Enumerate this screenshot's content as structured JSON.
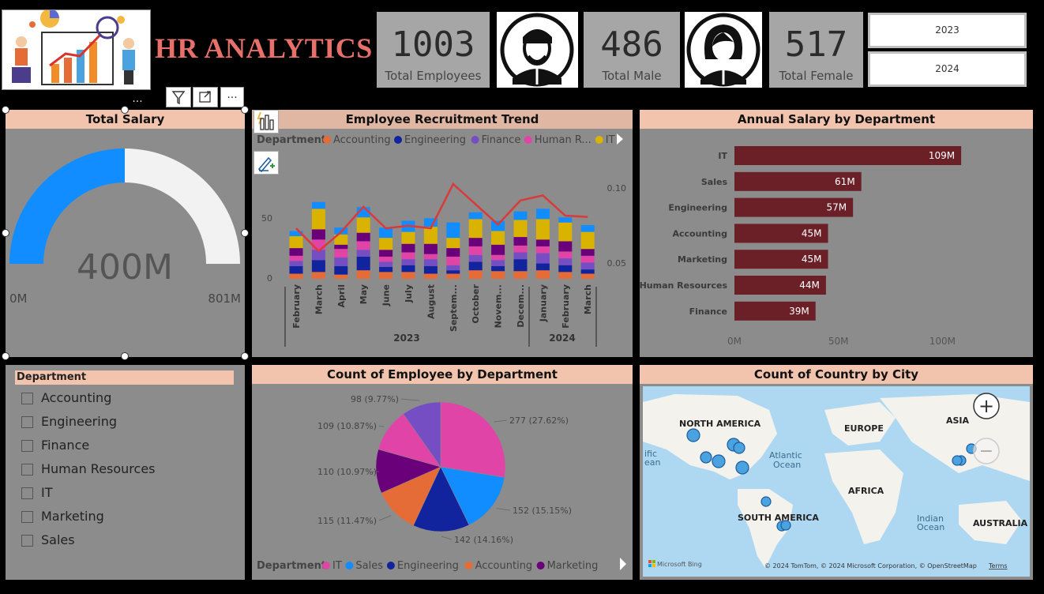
{
  "title": "HR ANALYTICS",
  "kpis": {
    "total_employees": {
      "value": "1003",
      "label": "Total Employees"
    },
    "total_male": {
      "value": "486",
      "label": "Total Male"
    },
    "total_female": {
      "value": "517",
      "label": "Total Female"
    }
  },
  "year_filter": {
    "options": [
      "2023",
      "2024"
    ]
  },
  "toolbar": {
    "more": "...",
    "filter_icon": "filter-icon",
    "focus_icon": "focus-mode-icon",
    "more_icon": "more-options-icon"
  },
  "gauge": {
    "title": "Total Salary",
    "value_label": "400M",
    "min_label": "0M",
    "max_label": "801M",
    "fill_fraction": 0.5,
    "colors": {
      "fill": "#118dff",
      "track": "#f2f2f2"
    }
  },
  "recruitment": {
    "title": "Employee Recruitment Trend",
    "legend_title": "Department",
    "legend_items": [
      {
        "name": "Accounting",
        "color": "#e66c37"
      },
      {
        "name": "Engineering",
        "color": "#12239e"
      },
      {
        "name": "Finance",
        "color": "#744ec2"
      },
      {
        "name": "Human R...",
        "color": "#e044a7"
      },
      {
        "name": "IT",
        "color": "#d9b300"
      }
    ],
    "y_ticks_left": [
      "0",
      "50"
    ],
    "y_ticks_right": [
      "0.05",
      "0.10"
    ],
    "year_labels": [
      "2023",
      "2024"
    ]
  },
  "annual_salary": {
    "title": "Annual Salary by Department"
  },
  "slicer": {
    "title": "Department",
    "items": [
      "Accounting",
      "Engineering",
      "Finance",
      "Human Resources",
      "IT",
      "Marketing",
      "Sales"
    ]
  },
  "pie": {
    "title": "Count of Employee by Department",
    "legend_title": "Department",
    "legend_items": [
      {
        "name": "IT",
        "color": "#e044a7"
      },
      {
        "name": "Sales",
        "color": "#118dff"
      },
      {
        "name": "Engineering",
        "color": "#12239e"
      },
      {
        "name": "Accounting",
        "color": "#e66c37"
      },
      {
        "name": "Marketing",
        "color": "#6b007b"
      }
    ]
  },
  "map": {
    "title": "Count of Country by City",
    "labels": {
      "north_america": "NORTH AMERICA",
      "europe": "EUROPE",
      "asia": "ASIA",
      "atlantic": "Atlantic",
      "ocean": "Ocean",
      "pacific_1": "ific",
      "pacific_2": "ean",
      "africa": "AFRICA",
      "south_america": "SOUTH AMERICA",
      "indian": "Indian",
      "indian_ocean": "Ocean",
      "australia": "AUSTRALIA"
    },
    "bing": "Microsoft Bing",
    "copyright": "© 2024 TomTom, © 2024 Microsoft Corporation, © OpenStreetMap",
    "terms": "Terms",
    "zoom_in": "+",
    "zoom_out": "−"
  },
  "chart_data": [
    {
      "type": "bar",
      "title": "Employee Recruitment Trend",
      "categories": [
        "February",
        "March",
        "April",
        "May",
        "June",
        "July",
        "August",
        "Septem...",
        "October",
        "Novem...",
        "Decem...",
        "January",
        "February",
        "March"
      ],
      "groups": [
        {
          "name": "2023",
          "count": 11
        },
        {
          "name": "2024",
          "count": 3
        }
      ],
      "stacked": true,
      "series": [
        {
          "name": "Accounting",
          "color": "#e66c37",
          "values": [
            6,
            8,
            5,
            10,
            8,
            8,
            6,
            6,
            10,
            9,
            9,
            10,
            8,
            6
          ]
        },
        {
          "name": "Engineering",
          "color": "#12239e",
          "values": [
            9,
            14,
            10,
            16,
            6,
            8,
            9,
            4,
            10,
            6,
            14,
            8,
            8,
            5
          ]
        },
        {
          "name": "Finance",
          "color": "#744ec2",
          "values": [
            6,
            12,
            10,
            8,
            6,
            7,
            8,
            6,
            8,
            7,
            8,
            12,
            8,
            8
          ]
        },
        {
          "name": "Human Resources",
          "color": "#e044a7",
          "values": [
            6,
            12,
            10,
            10,
            6,
            8,
            6,
            10,
            10,
            6,
            8,
            8,
            8,
            8
          ]
        },
        {
          "name": "IT",
          "color": "#d9b300",
          "values": [
            14,
            24,
            12,
            18,
            14,
            14,
            20,
            12,
            22,
            16,
            20,
            24,
            22,
            20
          ]
        },
        {
          "name": "Marketing",
          "color": "#6b007b",
          "values": [
            9,
            12,
            5,
            10,
            8,
            10,
            12,
            10,
            10,
            12,
            10,
            8,
            12,
            8
          ]
        },
        {
          "name": "Sales",
          "color": "#118dff",
          "values": [
            6,
            8,
            8,
            12,
            12,
            13,
            10,
            18,
            8,
            12,
            10,
            12,
            6,
            8
          ]
        }
      ],
      "line": {
        "color": "#d93a3a",
        "axis": "right",
        "values": [
          0.07,
          0.052,
          0.067,
          0.087,
          0.07,
          0.072,
          0.07,
          0.105,
          0.089,
          0.073,
          0.092,
          0.096,
          0.08,
          0.079
        ]
      },
      "ylim": [
        0,
        120
      ],
      "y2lim": [
        0.03,
        0.13
      ]
    },
    {
      "type": "bar",
      "orientation": "horizontal",
      "title": "Annual Salary by Department",
      "categories": [
        "IT",
        "Sales",
        "Engineering",
        "Accounting",
        "Marketing",
        "Human Resources",
        "Finance"
      ],
      "values": [
        109,
        61,
        57,
        45,
        45,
        44,
        39
      ],
      "data_labels": [
        "109M",
        "61M",
        "57M",
        "45M",
        "45M",
        "44M",
        "39M"
      ],
      "x_ticks": [
        "0M",
        "50M",
        "100M"
      ],
      "xlim": [
        0,
        120
      ],
      "color": "#6b2028"
    },
    {
      "type": "pie",
      "title": "Count of Employee by Department",
      "slices": [
        {
          "name": "IT",
          "value": 277,
          "label": "277 (27.62%)",
          "color": "#e044a7"
        },
        {
          "name": "Sales",
          "value": 152,
          "label": "152 (15.15%)",
          "color": "#118dff"
        },
        {
          "name": "Engineering",
          "value": 142,
          "label": "142 (14.16%)",
          "color": "#12239e"
        },
        {
          "name": "Accounting",
          "value": 115,
          "label": "115 (11.47%)",
          "color": "#e66c37"
        },
        {
          "name": "Marketing",
          "value": 110,
          "label": "110 (10.97%)",
          "color": "#6b007b"
        },
        {
          "name": "Human Resources",
          "value": 109,
          "label": "109 (10.87%)",
          "color": "#e044a7"
        },
        {
          "name": "Finance",
          "value": 98,
          "label": "98 (9.77%)",
          "color": "#744ec2"
        }
      ]
    }
  ]
}
